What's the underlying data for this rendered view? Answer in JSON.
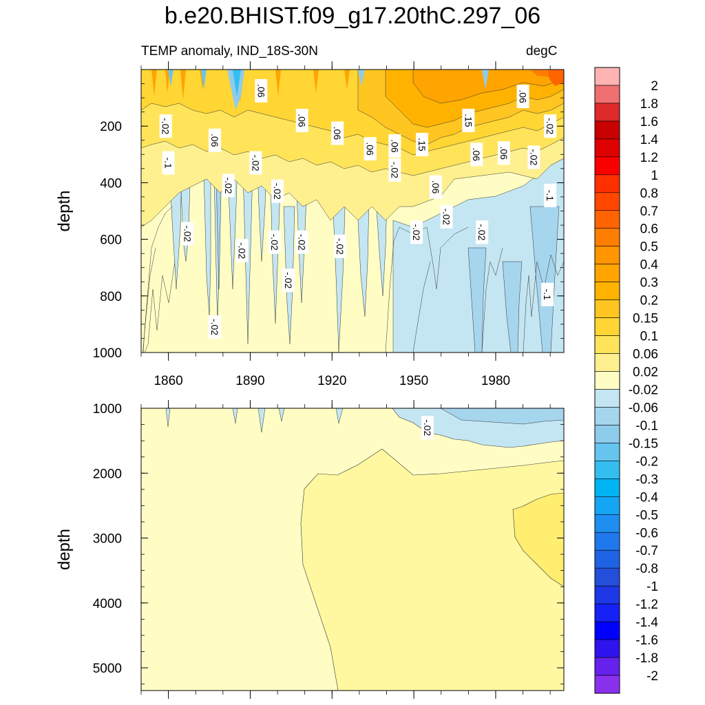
{
  "title": "b.e20.BHIST.f09_g17.20thC.297_06",
  "left_string": "TEMP anomaly, IND_18S-30N",
  "right_string": "degC",
  "chart_data": [
    {
      "type": "heatmap",
      "panel": "upper",
      "ylabel": "depth",
      "ylim": [
        1000,
        0
      ],
      "yticks": [
        200,
        400,
        600,
        800,
        1000
      ],
      "xlim": [
        1850,
        2005
      ],
      "xticks": [
        1860,
        1890,
        1920,
        1950,
        1980
      ],
      "y_reversed": true,
      "contour_labels": [
        {
          "label": "-.02",
          "x": 1859,
          "y": 200
        },
        {
          "label": "-.1",
          "x": 1860,
          "y": 330
        },
        {
          "label": "-.02",
          "x": 1867,
          "y": 580
        },
        {
          "label": "-.02",
          "x": 1877,
          "y": 910
        },
        {
          "label": ".06",
          "x": 1877,
          "y": 250
        },
        {
          "label": "-.02",
          "x": 1882,
          "y": 410
        },
        {
          "label": "-.02",
          "x": 1887,
          "y": 640
        },
        {
          "label": ".06",
          "x": 1894,
          "y": 75
        },
        {
          "label": "-.02",
          "x": 1892,
          "y": 330
        },
        {
          "label": "-.02",
          "x": 1899,
          "y": 610
        },
        {
          "label": "-.02",
          "x": 1900,
          "y": 430
        },
        {
          "label": "-.02",
          "x": 1904,
          "y": 745
        },
        {
          "label": ".06",
          "x": 1909,
          "y": 180
        },
        {
          "label": "-.02",
          "x": 1909,
          "y": 610
        },
        {
          "label": ".06",
          "x": 1922,
          "y": 225
        },
        {
          "label": "-.02",
          "x": 1923,
          "y": 625
        },
        {
          "label": ".06",
          "x": 1934,
          "y": 280
        },
        {
          "label": ".06",
          "x": 1943,
          "y": 270
        },
        {
          "label": "-.02",
          "x": 1943,
          "y": 355
        },
        {
          "label": ".15",
          "x": 1953,
          "y": 265
        },
        {
          "label": "-.02",
          "x": 1951,
          "y": 575
        },
        {
          "label": ".06",
          "x": 1958,
          "y": 415
        },
        {
          "label": "-.02",
          "x": 1962,
          "y": 520
        },
        {
          "label": ".15",
          "x": 1970,
          "y": 180
        },
        {
          "label": ".06",
          "x": 1973,
          "y": 300
        },
        {
          "label": "-.02",
          "x": 1975,
          "y": 575
        },
        {
          "label": ".06",
          "x": 1983,
          "y": 295
        },
        {
          "label": ".06",
          "x": 1990,
          "y": 95
        },
        {
          "label": "-.02",
          "x": 1994,
          "y": 310
        },
        {
          "label": "-.02",
          "x": 2000,
          "y": 200
        },
        {
          "label": "-.1",
          "x": 2000,
          "y": 445
        },
        {
          "label": "-.1",
          "x": 1999,
          "y": 795
        }
      ]
    },
    {
      "type": "heatmap",
      "panel": "lower",
      "ylabel": "depth",
      "ylim": [
        5350,
        1000
      ],
      "yticks": [
        1000,
        2000,
        3000,
        4000,
        5000
      ],
      "xlim": [
        1850,
        2005
      ],
      "y_reversed": true,
      "contour_labels": [
        {
          "label": "-.02",
          "x": 1955,
          "y": 1300
        }
      ]
    }
  ],
  "colorbar": {
    "levels": [
      "2",
      "1.8",
      "1.6",
      "1.4",
      "1.2",
      "1",
      "0.8",
      "0.7",
      "0.6",
      "0.5",
      "0.4",
      "0.3",
      "0.2",
      "0.15",
      "0.1",
      "0.06",
      "0.02",
      "-0.02",
      "-0.06",
      "-0.1",
      "-0.15",
      "-0.2",
      "-0.3",
      "-0.4",
      "-0.5",
      "-0.6",
      "-0.7",
      "-0.8",
      "-1",
      "-1.2",
      "-1.4",
      "-1.6",
      "-1.8",
      "-2"
    ],
    "colors": [
      "#FFB3B3",
      "#EE7070",
      "#DD2A2A",
      "#C80000",
      "#DF0000",
      "#FC0000",
      "#FF3000",
      "#FF4700",
      "#FF6400",
      "#FF7E00",
      "#FF9500",
      "#FFA400",
      "#FFB300",
      "#FFC521",
      "#FFD634",
      "#FFE45A",
      "#FFF08F",
      "#FFFDC4",
      "#C4E6F2",
      "#A6D5EE",
      "#8ECCEC",
      "#66C5EE",
      "#34BEF0",
      "#00B3F3",
      "#14A6F2",
      "#1E8EF0",
      "#1F79EC",
      "#1F63E5",
      "#244FDB",
      "#1E37E7",
      "#1521F5",
      "#0000FF",
      "#3014EE",
      "#6621EC",
      "#8A31EE"
    ]
  }
}
